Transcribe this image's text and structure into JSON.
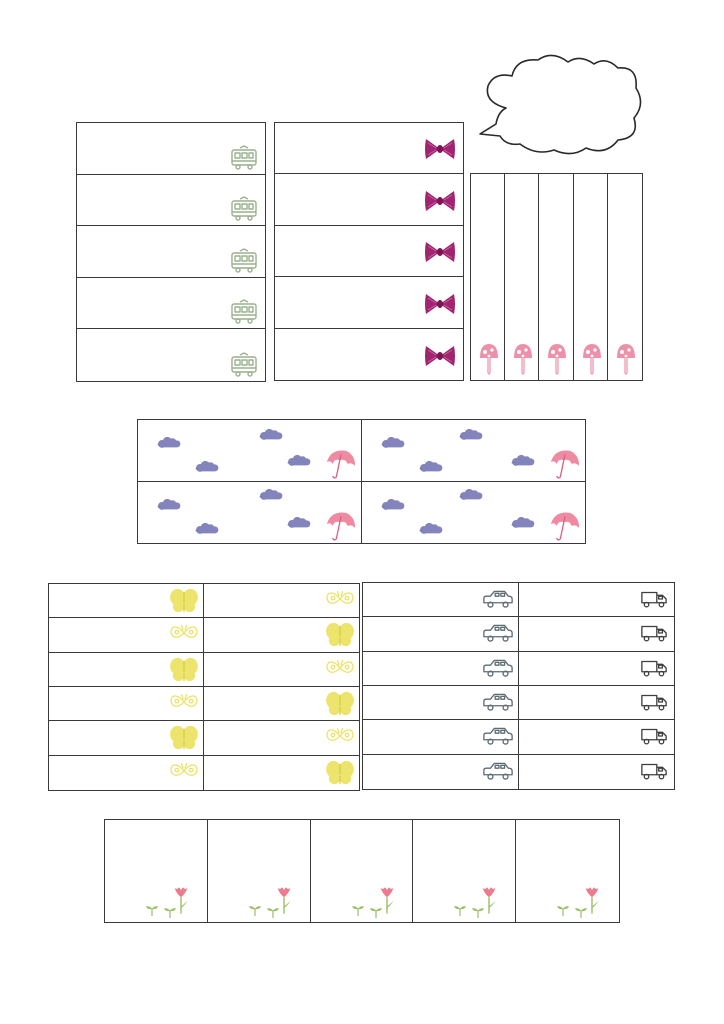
{
  "sheet": {
    "theme_colors": {
      "tram": "#9bb08e",
      "bow": "#a0246f",
      "mushroom": "#e98aa6",
      "cloud": "#6f6fb2",
      "umbrella": "#ee8aa2",
      "butterfly": "#ece25f",
      "car_outline": "#5d6b73",
      "truck_outline": "#3e3e3e",
      "tulip": "#ee7a8e",
      "leaf": "#9cc06a"
    },
    "icons": {
      "tram_section": "tram-icon",
      "bow_section": "bow-icon",
      "mushroom_section": "mushroom-icon",
      "speech_bubble": "cloud-speech-bubble-icon",
      "weather_section": [
        "raincloud-icon",
        "umbrella-icon"
      ],
      "butterfly_section": [
        "butterfly-icon",
        "butterfly-outline-icon"
      ],
      "vehicle_section": [
        "car-icon",
        "truck-icon"
      ],
      "flower_section": [
        "tulip-icon",
        "sprout-icon"
      ]
    }
  }
}
